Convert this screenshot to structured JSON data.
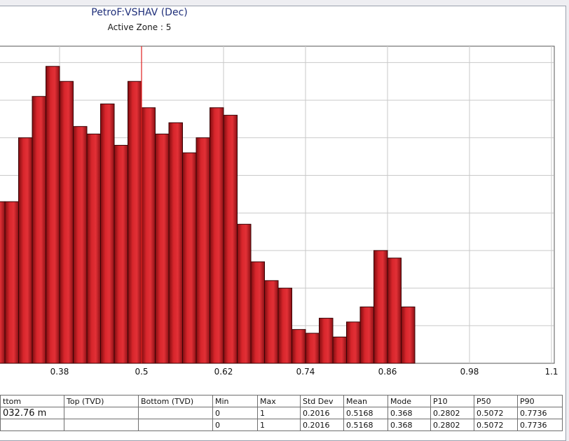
{
  "chart_data": {
    "type": "bar",
    "title": "PetroF:VSHAV (Dec)",
    "subtitle": "Active Zone : 5",
    "bin_width": 0.02,
    "x": [
      0.29,
      0.31,
      0.33,
      0.35,
      0.37,
      0.39,
      0.41,
      0.43,
      0.45,
      0.47,
      0.49,
      0.51,
      0.53,
      0.55,
      0.57,
      0.59,
      0.61,
      0.63,
      0.65,
      0.67,
      0.69,
      0.71,
      0.73,
      0.75,
      0.77,
      0.79,
      0.81,
      0.83,
      0.85,
      0.87,
      0.89,
      0.91,
      0.93,
      0.95,
      0.97,
      0.99
    ],
    "values": [
      43,
      43,
      60,
      71,
      79,
      75,
      63,
      61,
      69,
      58,
      75,
      68,
      61,
      64,
      56,
      60,
      68,
      66,
      37,
      27,
      22,
      20,
      9,
      8,
      12,
      7,
      11,
      15,
      30,
      28,
      15,
      0,
      0,
      0,
      0,
      0
    ],
    "xlim": [
      0.26,
      1.1
    ],
    "ylim": [
      0,
      84
    ],
    "xticks": [
      "0.38",
      "0.5",
      "0.62",
      "0.74",
      "0.86",
      "0.98",
      "1.1"
    ],
    "xtick_values": [
      0.38,
      0.5,
      0.62,
      0.74,
      0.86,
      0.98,
      1.1
    ],
    "marker_x": 0.5,
    "grid": true,
    "bar_color": "#c81e24",
    "marker_color": "#e02020"
  },
  "table": {
    "columns": [
      "ttom",
      "Top (TVD)",
      "Bottom (TVD)",
      "Min",
      "Max",
      "Std Dev",
      "Mean",
      "Mode",
      "P10",
      "P50",
      "P90"
    ],
    "rows": [
      [
        "032.76 m",
        "",
        "",
        "0",
        "1",
        "0.2016",
        "0.5168",
        "0.368",
        "0.2802",
        "0.5072",
        "0.7736"
      ],
      [
        "",
        "",
        "",
        "0",
        "1",
        "0.2016",
        "0.5168",
        "0.368",
        "0.2802",
        "0.5072",
        "0.7736"
      ]
    ]
  }
}
